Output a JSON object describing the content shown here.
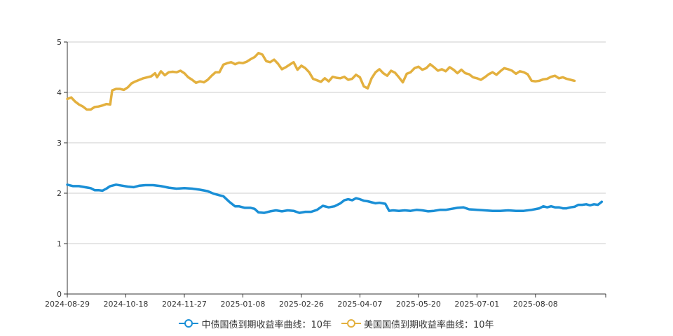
{
  "chart_data": {
    "type": "line",
    "ylim": [
      0,
      5
    ],
    "y_ticks": [
      0,
      1,
      2,
      3,
      4,
      5
    ],
    "x_tick_labels": [
      "2024-08-29",
      "2024-10-18",
      "2024-11-27",
      "2025-01-08",
      "2025-02-26",
      "2025-04-07",
      "2025-05-20",
      "2025-07-01",
      "2025-08-08"
    ],
    "grid": "horizontal",
    "legend_position": "bottom-center",
    "series": [
      {
        "name": "中债国债到期收益率曲线：10年",
        "color": "#1a8fd6",
        "points": [
          [
            0,
            2.17
          ],
          [
            3,
            2.14
          ],
          [
            6,
            2.14
          ],
          [
            9,
            2.12
          ],
          [
            12,
            2.1
          ],
          [
            14,
            2.06
          ],
          [
            16,
            2.06
          ],
          [
            18,
            2.05
          ],
          [
            20,
            2.09
          ],
          [
            22,
            2.14
          ],
          [
            25,
            2.17
          ],
          [
            28,
            2.15
          ],
          [
            31,
            2.13
          ],
          [
            34,
            2.12
          ],
          [
            37,
            2.15
          ],
          [
            40,
            2.16
          ],
          [
            44,
            2.16
          ],
          [
            48,
            2.14
          ],
          [
            52,
            2.11
          ],
          [
            56,
            2.09
          ],
          [
            60,
            2.1
          ],
          [
            64,
            2.09
          ],
          [
            68,
            2.07
          ],
          [
            72,
            2.04
          ],
          [
            75,
            1.99
          ],
          [
            78,
            1.96
          ],
          [
            80,
            1.94
          ],
          [
            83,
            1.83
          ],
          [
            86,
            1.74
          ],
          [
            88,
            1.74
          ],
          [
            91,
            1.71
          ],
          [
            94,
            1.71
          ],
          [
            96,
            1.69
          ],
          [
            98,
            1.62
          ],
          [
            101,
            1.61
          ],
          [
            104,
            1.64
          ],
          [
            107,
            1.66
          ],
          [
            110,
            1.64
          ],
          [
            113,
            1.66
          ],
          [
            116,
            1.65
          ],
          [
            119,
            1.61
          ],
          [
            122,
            1.63
          ],
          [
            125,
            1.63
          ],
          [
            128,
            1.67
          ],
          [
            131,
            1.75
          ],
          [
            134,
            1.72
          ],
          [
            137,
            1.74
          ],
          [
            140,
            1.8
          ],
          [
            142,
            1.86
          ],
          [
            144,
            1.88
          ],
          [
            146,
            1.86
          ],
          [
            148,
            1.9
          ],
          [
            150,
            1.88
          ],
          [
            152,
            1.85
          ],
          [
            154,
            1.84
          ],
          [
            156,
            1.82
          ],
          [
            158,
            1.8
          ],
          [
            160,
            1.81
          ],
          [
            163,
            1.79
          ],
          [
            165,
            1.65
          ],
          [
            167,
            1.66
          ],
          [
            170,
            1.65
          ],
          [
            173,
            1.66
          ],
          [
            176,
            1.65
          ],
          [
            179,
            1.67
          ],
          [
            182,
            1.66
          ],
          [
            185,
            1.64
          ],
          [
            188,
            1.65
          ],
          [
            191,
            1.67
          ],
          [
            194,
            1.67
          ],
          [
            197,
            1.69
          ],
          [
            200,
            1.71
          ],
          [
            203,
            1.72
          ],
          [
            206,
            1.68
          ],
          [
            210,
            1.67
          ],
          [
            214,
            1.66
          ],
          [
            218,
            1.65
          ],
          [
            222,
            1.65
          ],
          [
            226,
            1.66
          ],
          [
            230,
            1.65
          ],
          [
            234,
            1.65
          ],
          [
            238,
            1.67
          ],
          [
            242,
            1.7
          ],
          [
            244,
            1.74
          ],
          [
            246,
            1.72
          ],
          [
            248,
            1.74
          ],
          [
            250,
            1.72
          ],
          [
            252,
            1.72
          ],
          [
            254,
            1.7
          ],
          [
            256,
            1.7
          ],
          [
            258,
            1.72
          ],
          [
            260,
            1.73
          ],
          [
            262,
            1.77
          ],
          [
            264,
            1.77
          ],
          [
            266,
            1.78
          ],
          [
            268,
            1.76
          ],
          [
            270,
            1.78
          ],
          [
            272,
            1.77
          ],
          [
            274,
            1.83
          ]
        ]
      },
      {
        "name": "美国国债到期收益率曲线：10年",
        "color": "#e3b03e",
        "points": [
          [
            0,
            3.87
          ],
          [
            2,
            3.9
          ],
          [
            4,
            3.82
          ],
          [
            6,
            3.76
          ],
          [
            8,
            3.72
          ],
          [
            10,
            3.66
          ],
          [
            12,
            3.66
          ],
          [
            14,
            3.71
          ],
          [
            16,
            3.72
          ],
          [
            18,
            3.74
          ],
          [
            20,
            3.77
          ],
          [
            22,
            3.76
          ],
          [
            23,
            4.04
          ],
          [
            25,
            4.07
          ],
          [
            27,
            4.07
          ],
          [
            29,
            4.05
          ],
          [
            31,
            4.1
          ],
          [
            33,
            4.18
          ],
          [
            35,
            4.22
          ],
          [
            37,
            4.25
          ],
          [
            39,
            4.28
          ],
          [
            41,
            4.3
          ],
          [
            43,
            4.32
          ],
          [
            45,
            4.38
          ],
          [
            46,
            4.3
          ],
          [
            48,
            4.42
          ],
          [
            50,
            4.34
          ],
          [
            52,
            4.4
          ],
          [
            54,
            4.41
          ],
          [
            56,
            4.4
          ],
          [
            58,
            4.43
          ],
          [
            60,
            4.38
          ],
          [
            62,
            4.3
          ],
          [
            64,
            4.25
          ],
          [
            66,
            4.19
          ],
          [
            68,
            4.22
          ],
          [
            70,
            4.2
          ],
          [
            72,
            4.25
          ],
          [
            74,
            4.33
          ],
          [
            76,
            4.4
          ],
          [
            78,
            4.4
          ],
          [
            80,
            4.55
          ],
          [
            82,
            4.58
          ],
          [
            84,
            4.6
          ],
          [
            86,
            4.56
          ],
          [
            88,
            4.59
          ],
          [
            90,
            4.58
          ],
          [
            92,
            4.61
          ],
          [
            94,
            4.66
          ],
          [
            96,
            4.7
          ],
          [
            98,
            4.78
          ],
          [
            100,
            4.75
          ],
          [
            102,
            4.62
          ],
          [
            104,
            4.6
          ],
          [
            106,
            4.65
          ],
          [
            108,
            4.57
          ],
          [
            110,
            4.46
          ],
          [
            112,
            4.5
          ],
          [
            114,
            4.55
          ],
          [
            116,
            4.6
          ],
          [
            118,
            4.45
          ],
          [
            120,
            4.53
          ],
          [
            122,
            4.48
          ],
          [
            124,
            4.4
          ],
          [
            126,
            4.27
          ],
          [
            128,
            4.24
          ],
          [
            130,
            4.21
          ],
          [
            132,
            4.28
          ],
          [
            134,
            4.22
          ],
          [
            136,
            4.31
          ],
          [
            138,
            4.29
          ],
          [
            140,
            4.28
          ],
          [
            142,
            4.31
          ],
          [
            144,
            4.25
          ],
          [
            146,
            4.27
          ],
          [
            148,
            4.35
          ],
          [
            150,
            4.3
          ],
          [
            152,
            4.12
          ],
          [
            154,
            4.08
          ],
          [
            156,
            4.28
          ],
          [
            158,
            4.4
          ],
          [
            160,
            4.46
          ],
          [
            162,
            4.38
          ],
          [
            164,
            4.33
          ],
          [
            166,
            4.43
          ],
          [
            168,
            4.39
          ],
          [
            170,
            4.3
          ],
          [
            172,
            4.2
          ],
          [
            174,
            4.37
          ],
          [
            176,
            4.4
          ],
          [
            178,
            4.48
          ],
          [
            180,
            4.51
          ],
          [
            182,
            4.45
          ],
          [
            184,
            4.48
          ],
          [
            186,
            4.56
          ],
          [
            188,
            4.5
          ],
          [
            190,
            4.43
          ],
          [
            192,
            4.46
          ],
          [
            194,
            4.42
          ],
          [
            196,
            4.5
          ],
          [
            198,
            4.45
          ],
          [
            200,
            4.38
          ],
          [
            202,
            4.45
          ],
          [
            204,
            4.38
          ],
          [
            206,
            4.36
          ],
          [
            208,
            4.3
          ],
          [
            210,
            4.28
          ],
          [
            212,
            4.25
          ],
          [
            214,
            4.3
          ],
          [
            216,
            4.36
          ],
          [
            218,
            4.4
          ],
          [
            220,
            4.35
          ],
          [
            222,
            4.42
          ],
          [
            224,
            4.48
          ],
          [
            226,
            4.46
          ],
          [
            228,
            4.43
          ],
          [
            230,
            4.37
          ],
          [
            232,
            4.42
          ],
          [
            234,
            4.4
          ],
          [
            236,
            4.36
          ],
          [
            238,
            4.23
          ],
          [
            240,
            4.22
          ],
          [
            242,
            4.23
          ],
          [
            244,
            4.26
          ],
          [
            246,
            4.27
          ],
          [
            248,
            4.31
          ],
          [
            250,
            4.33
          ],
          [
            252,
            4.28
          ],
          [
            254,
            4.3
          ],
          [
            256,
            4.27
          ],
          [
            258,
            4.25
          ],
          [
            260,
            4.23
          ]
        ]
      }
    ]
  }
}
